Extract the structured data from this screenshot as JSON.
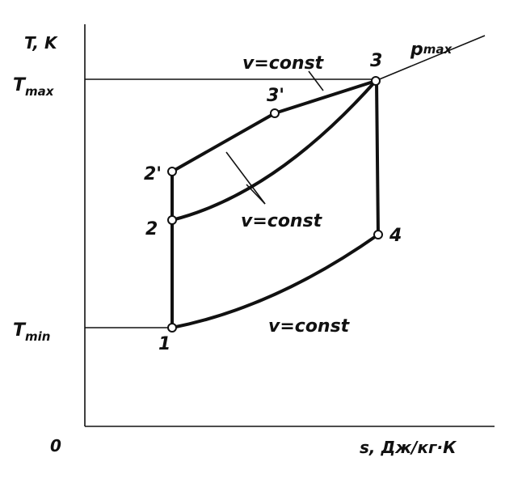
{
  "axes": {
    "y_label": "T, K",
    "x_label": "s, Дж/кг·К",
    "origin": "0"
  },
  "levels": {
    "t_max": {
      "symbol": "T",
      "subscript": "max"
    },
    "t_min": {
      "symbol": "T",
      "subscript": "min"
    }
  },
  "isobar": {
    "symbol": "p",
    "subscript": "max"
  },
  "points": [
    "1",
    "2",
    "2'",
    "3'",
    "3",
    "4"
  ],
  "curve_labels": [
    "v=const",
    "v=const",
    "v=const"
  ]
}
